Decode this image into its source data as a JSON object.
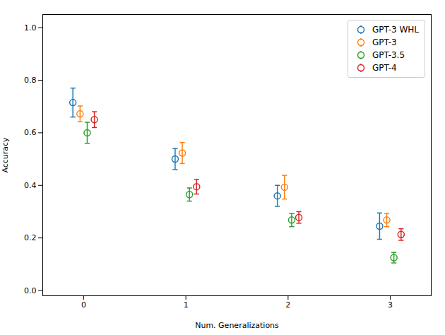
{
  "chart_data": {
    "type": "errorbar",
    "xlabel": "Num. Generalizations",
    "ylabel": "Accuracy",
    "x": [
      0,
      1,
      2,
      3
    ],
    "xlim": [
      -0.4,
      3.4
    ],
    "ylim": [
      -0.02,
      1.05
    ],
    "xticks": [
      0,
      1,
      2,
      3
    ],
    "yticks": [
      {
        "value": 0.0,
        "label": "0.0"
      },
      0.2,
      0.4,
      0.6,
      0.8,
      {
        "value": 1.0,
        "label": "1.0"
      }
    ],
    "marker": "circle",
    "legend": "upper right",
    "grid": false,
    "series": [
      {
        "name": "GPT-3 WHL",
        "color": "#1f77b4",
        "values": [
          0.715,
          0.5,
          0.36,
          0.245
        ],
        "yerr": [
          0.055,
          0.04,
          0.04,
          0.05
        ]
      },
      {
        "name": "GPT-3",
        "color": "#ff7f0e",
        "values": [
          0.672,
          0.523,
          0.393,
          0.268
        ],
        "yerr": [
          0.03,
          0.04,
          0.045,
          0.025
        ]
      },
      {
        "name": "GPT-3.5",
        "color": "#2ca02c",
        "values": [
          0.6,
          0.365,
          0.268,
          0.125
        ],
        "yerr": [
          0.04,
          0.025,
          0.025,
          0.02
        ]
      },
      {
        "name": "GPT-4",
        "color": "#d62728",
        "values": [
          0.65,
          0.395,
          0.278,
          0.213
        ],
        "yerr": [
          0.03,
          0.028,
          0.022,
          0.022
        ]
      }
    ]
  }
}
